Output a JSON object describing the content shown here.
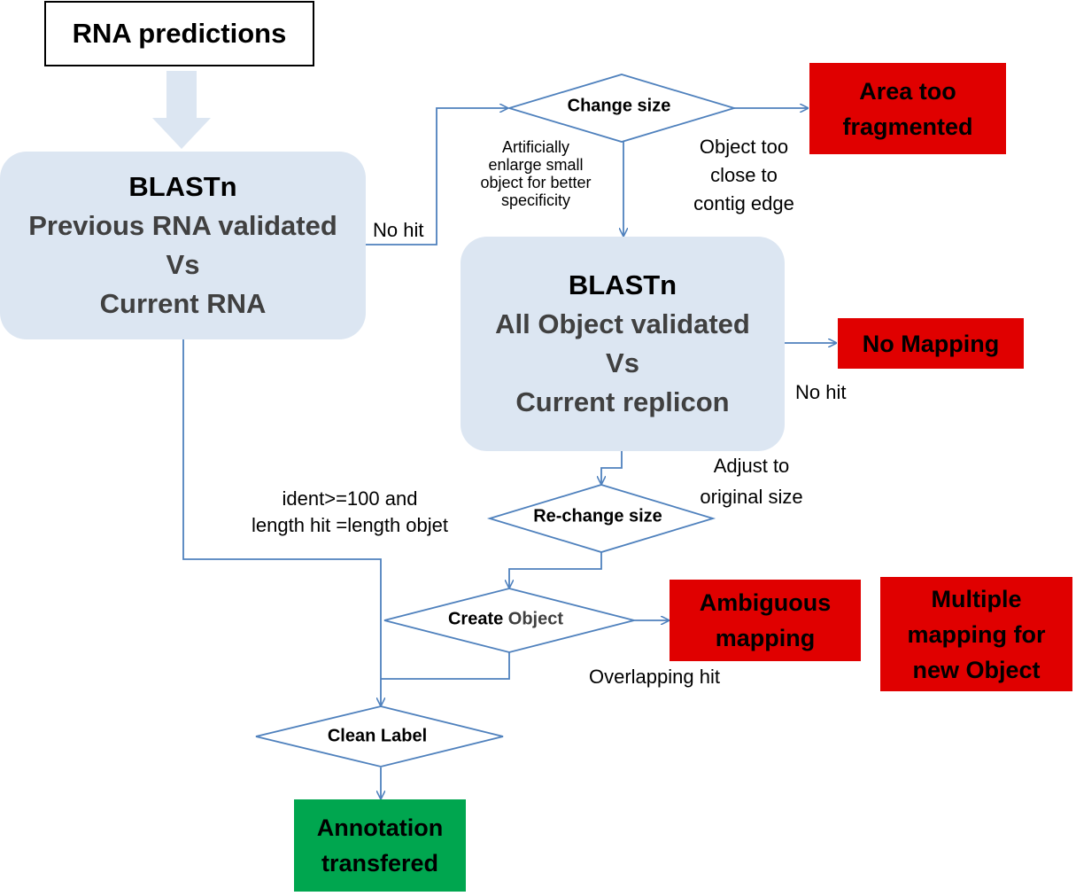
{
  "nodes": {
    "start": "RNA predictions",
    "blast1": {
      "head": "BLASTn",
      "line1": "Previous RNA validated",
      "line2": "Vs",
      "line3": "Current RNA"
    },
    "blast2": {
      "head": "BLASTn",
      "line1": "All Object validated",
      "line2": "Vs",
      "line3": "Current replicon"
    },
    "change_size": "Change size",
    "rechange_size": "Re-change size",
    "create_object": {
      "part1": "Create ",
      "part2": "Object"
    },
    "clean_label": "Clean Label",
    "area_fragmented": "Area too\nfragmented",
    "no_mapping": "No Mapping",
    "ambiguous": "Ambiguous\nmapping",
    "multiple": "Multiple\nmapping for\nnew Object",
    "annotation": "Annotation\ntransfered"
  },
  "edge_labels": {
    "no_hit_1": "No hit",
    "enlarge": "Artificially\nenlarge small\nobject for better\nspecificity",
    "too_close": "Object too\nclose to\ncontig edge",
    "no_hit_2": "No hit",
    "adjust": "Adjust to\noriginal size",
    "ident": "ident>=100 and\nlength hit =length objet",
    "overlapping": "Overlapping hit"
  },
  "colors": {
    "arrow": "#4f81bd",
    "blast_fill": "#dce6f2",
    "error_fill": "#e00000",
    "success_fill": "#00a64f"
  }
}
